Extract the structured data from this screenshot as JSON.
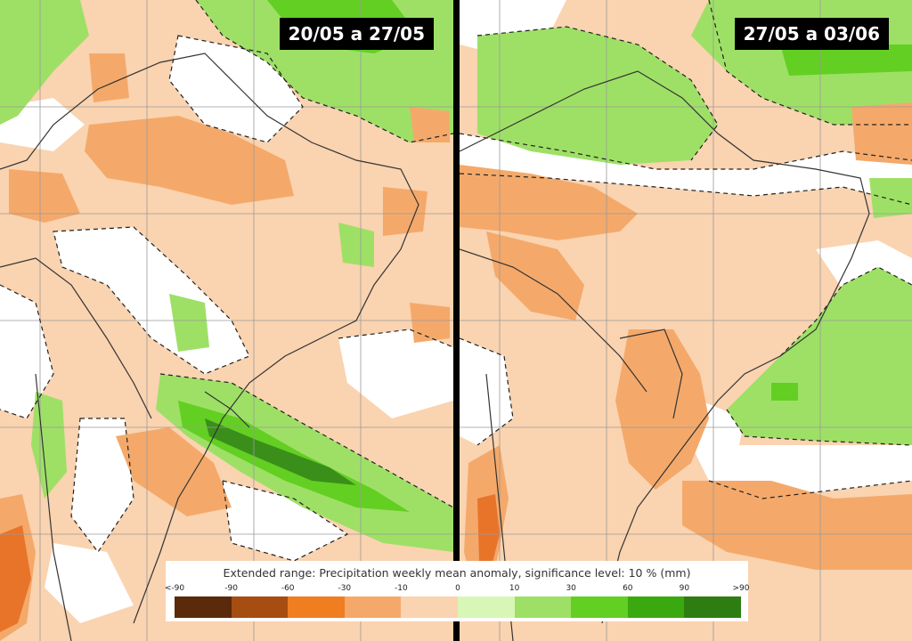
{
  "panels": [
    {
      "id": "left",
      "period": "20/05 a 27/05"
    },
    {
      "id": "right",
      "period": "27/05 a 03/06"
    }
  ],
  "legend": {
    "title": "Extended range: Precipitation weekly mean anomaly, significance level: 10 % (mm)",
    "ticks": [
      "<-90",
      "-90",
      "-60",
      "-30",
      "-10",
      "0",
      "10",
      "30",
      "60",
      "90",
      ">90"
    ],
    "colors": [
      "#5a2a0a",
      "#a64d12",
      "#f07d1f",
      "#f4a96a",
      "#fad3b0",
      "#d8f7b6",
      "#9ee066",
      "#63cf22",
      "#3aa80f",
      "#2e7d12"
    ]
  },
  "map_colors": {
    "dry_light": "#fad3b0",
    "dry_medium": "#f4a96a",
    "dry_strong": "#e8742a",
    "wet_light": "#9ee066",
    "wet_medium": "#63cf22",
    "wet_strong": "#3a8f1a",
    "no_signal": "#ffffff"
  }
}
